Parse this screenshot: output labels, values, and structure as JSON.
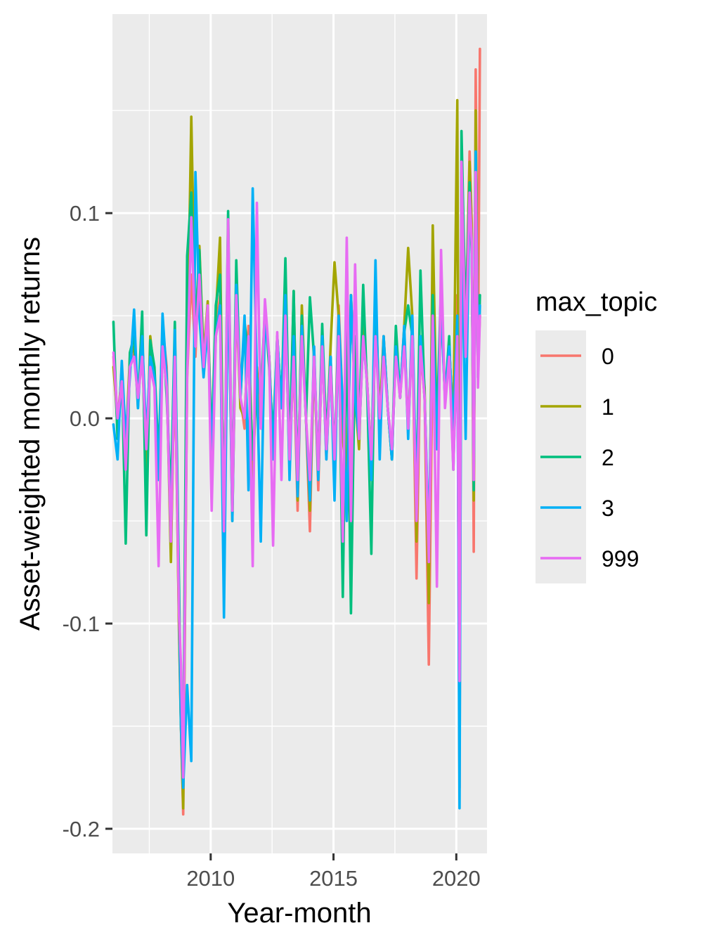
{
  "chart_data": {
    "type": "line",
    "title": "",
    "xlabel": "Year-month",
    "ylabel": "Asset-weighted monthly returns",
    "xlim": [
      2006.0,
      2021.25
    ],
    "ylim": [
      -0.212,
      0.197
    ],
    "x_ticks": [
      2010,
      2015,
      2020
    ],
    "x_tick_labels": [
      "2010",
      "2015",
      "2020"
    ],
    "y_ticks": [
      -0.2,
      -0.1,
      0.0,
      0.1
    ],
    "y_tick_labels": [
      "-0.2",
      "-0.1",
      "0.0",
      "0.1"
    ],
    "grid": true,
    "legend": {
      "title": "max_topic",
      "position": "right"
    },
    "series": [
      {
        "name": "0",
        "color": "#F8766D",
        "x": [
          2006.04,
          2006.21,
          2006.38,
          2006.54,
          2006.71,
          2006.88,
          2007.04,
          2007.21,
          2007.38,
          2007.54,
          2007.71,
          2007.88,
          2008.04,
          2008.21,
          2008.38,
          2008.54,
          2008.71,
          2008.79,
          2008.88,
          2009.04,
          2009.21,
          2009.38,
          2009.54,
          2009.71,
          2009.88,
          2010.04,
          2010.21,
          2010.38,
          2010.54,
          2010.71,
          2010.88,
          2011.04,
          2011.21,
          2011.38,
          2011.54,
          2011.71,
          2011.88,
          2012.04,
          2012.21,
          2012.38,
          2012.54,
          2012.71,
          2012.88,
          2013.04,
          2013.21,
          2013.38,
          2013.54,
          2013.71,
          2013.88,
          2014.04,
          2014.21,
          2014.38,
          2014.54,
          2014.71,
          2014.88,
          2015.04,
          2015.21,
          2015.38,
          2015.54,
          2015.71,
          2015.88,
          2016.04,
          2016.21,
          2016.38,
          2016.54,
          2016.71,
          2016.88,
          2017.04,
          2017.21,
          2017.38,
          2017.54,
          2017.71,
          2017.88,
          2018.04,
          2018.21,
          2018.38,
          2018.54,
          2018.71,
          2018.88,
          2019.04,
          2019.21,
          2019.38,
          2019.54,
          2019.71,
          2019.88,
          2020.04,
          2020.13,
          2020.21,
          2020.38,
          2020.54,
          2020.63,
          2020.71,
          2020.79,
          2020.88,
          2020.96
        ],
        "values": [
          0.03,
          -0.005,
          0.015,
          -0.02,
          0.025,
          0.035,
          0.01,
          0.04,
          -0.015,
          0.03,
          0.02,
          -0.03,
          0.045,
          0.025,
          -0.06,
          0.03,
          -0.1,
          -0.15,
          -0.193,
          0.02,
          0.07,
          0.03,
          0.082,
          0.025,
          0.05,
          -0.01,
          0.04,
          0.06,
          -0.05,
          0.07,
          -0.04,
          0.065,
          0.01,
          -0.005,
          0.045,
          -0.025,
          0.02,
          -0.003,
          0.05,
          0.03,
          -0.015,
          0.04,
          0.005,
          0.06,
          -0.02,
          0.03,
          -0.045,
          0.045,
          0.0,
          -0.055,
          0.035,
          -0.035,
          0.04,
          -0.02,
          0.03,
          -0.025,
          0.055,
          0.005,
          -0.04,
          0.06,
          0.01,
          -0.01,
          0.045,
          0.015,
          -0.03,
          0.055,
          -0.005,
          0.04,
          0.005,
          -0.02,
          0.035,
          0.01,
          0.042,
          -0.005,
          0.045,
          -0.078,
          0.035,
          0.01,
          -0.12,
          0.04,
          -0.015,
          0.055,
          0.01,
          0.035,
          -0.005,
          0.06,
          -0.18,
          0.11,
          0.04,
          0.13,
          0.095,
          -0.065,
          0.17,
          0.02,
          0.18
        ]
      },
      {
        "name": "1",
        "color": "#A3A500",
        "x": [
          2006.04,
          2006.21,
          2006.38,
          2006.54,
          2006.71,
          2006.88,
          2007.04,
          2007.21,
          2007.38,
          2007.54,
          2007.71,
          2007.88,
          2008.04,
          2008.21,
          2008.38,
          2008.54,
          2008.71,
          2008.79,
          2008.88,
          2009.04,
          2009.21,
          2009.38,
          2009.54,
          2009.71,
          2009.88,
          2010.04,
          2010.21,
          2010.38,
          2010.54,
          2010.71,
          2010.88,
          2011.04,
          2011.21,
          2011.38,
          2011.54,
          2011.71,
          2011.88,
          2012.04,
          2012.21,
          2012.38,
          2012.54,
          2012.71,
          2012.88,
          2013.04,
          2013.21,
          2013.38,
          2013.54,
          2013.71,
          2013.88,
          2014.04,
          2014.21,
          2014.38,
          2014.54,
          2014.71,
          2014.88,
          2015.04,
          2015.21,
          2015.38,
          2015.54,
          2015.71,
          2015.88,
          2016.04,
          2016.21,
          2016.38,
          2016.54,
          2016.71,
          2016.88,
          2017.04,
          2017.21,
          2017.38,
          2017.54,
          2017.71,
          2017.88,
          2018.04,
          2018.21,
          2018.38,
          2018.54,
          2018.71,
          2018.88,
          2019.04,
          2019.21,
          2019.38,
          2019.54,
          2019.71,
          2019.88,
          2020.04,
          2020.13,
          2020.21,
          2020.38,
          2020.54,
          2020.63,
          2020.71,
          2020.79,
          2020.88,
          2020.96
        ],
        "values": [
          0.025,
          0.0,
          0.02,
          -0.015,
          0.03,
          0.035,
          0.012,
          0.035,
          -0.03,
          0.04,
          0.02,
          -0.025,
          0.04,
          0.02,
          -0.07,
          0.035,
          -0.103,
          -0.15,
          -0.19,
          0.025,
          0.147,
          0.04,
          0.084,
          0.03,
          0.057,
          -0.02,
          0.05,
          0.088,
          -0.06,
          0.084,
          -0.05,
          0.06,
          0.005,
          0.0,
          0.04,
          -0.03,
          0.025,
          0.0,
          0.05,
          0.03,
          -0.015,
          0.035,
          0.01,
          0.055,
          -0.025,
          0.062,
          -0.04,
          0.055,
          0.0,
          -0.045,
          0.03,
          -0.03,
          0.04,
          -0.015,
          0.035,
          0.076,
          0.05,
          -0.01,
          -0.03,
          0.06,
          0.01,
          -0.015,
          0.05,
          0.015,
          -0.02,
          0.06,
          0.0,
          0.04,
          0.005,
          -0.02,
          0.04,
          0.01,
          0.045,
          0.083,
          0.05,
          -0.06,
          0.04,
          0.015,
          -0.09,
          0.094,
          -0.01,
          0.06,
          0.01,
          0.035,
          -0.005,
          0.155,
          -0.13,
          0.12,
          0.04,
          0.125,
          0.09,
          -0.04,
          0.15,
          0.025,
          0.05
        ]
      },
      {
        "name": "2",
        "color": "#00BF7D",
        "x": [
          2006.04,
          2006.21,
          2006.38,
          2006.54,
          2006.71,
          2006.88,
          2007.04,
          2007.21,
          2007.38,
          2007.54,
          2007.71,
          2007.88,
          2008.04,
          2008.21,
          2008.38,
          2008.54,
          2008.71,
          2008.79,
          2008.88,
          2009.04,
          2009.21,
          2009.38,
          2009.54,
          2009.71,
          2009.88,
          2010.04,
          2010.21,
          2010.38,
          2010.54,
          2010.71,
          2010.88,
          2011.04,
          2011.21,
          2011.38,
          2011.54,
          2011.71,
          2011.88,
          2012.04,
          2012.21,
          2012.38,
          2012.54,
          2012.71,
          2012.88,
          2013.04,
          2013.21,
          2013.38,
          2013.54,
          2013.71,
          2013.88,
          2014.04,
          2014.21,
          2014.38,
          2014.54,
          2014.71,
          2014.88,
          2015.04,
          2015.21,
          2015.38,
          2015.54,
          2015.71,
          2015.88,
          2016.04,
          2016.21,
          2016.38,
          2016.54,
          2016.71,
          2016.88,
          2017.04,
          2017.21,
          2017.38,
          2017.54,
          2017.71,
          2017.88,
          2018.04,
          2018.21,
          2018.38,
          2018.54,
          2018.71,
          2018.88,
          2019.04,
          2019.21,
          2019.38,
          2019.54,
          2019.71,
          2019.88,
          2020.04,
          2020.13,
          2020.21,
          2020.38,
          2020.54,
          2020.63,
          2020.71,
          2020.79,
          2020.88,
          2020.96
        ],
        "values": [
          0.047,
          -0.01,
          0.025,
          -0.061,
          0.032,
          0.04,
          0.005,
          0.052,
          -0.057,
          0.038,
          0.025,
          -0.02,
          0.045,
          0.01,
          -0.04,
          0.047,
          -0.08,
          -0.14,
          -0.17,
          0.079,
          0.11,
          0.04,
          0.082,
          0.025,
          0.05,
          -0.015,
          0.055,
          0.07,
          -0.055,
          0.101,
          -0.045,
          0.077,
          0.01,
          0.047,
          0.03,
          -0.02,
          0.02,
          0.01,
          0.053,
          0.025,
          -0.01,
          0.04,
          0.005,
          0.078,
          -0.02,
          0.062,
          -0.035,
          0.05,
          0.0,
          0.059,
          0.03,
          -0.025,
          0.046,
          -0.01,
          0.03,
          -0.02,
          0.048,
          -0.087,
          0.05,
          -0.095,
          0.04,
          -0.01,
          0.065,
          0.01,
          -0.066,
          0.062,
          -0.005,
          0.035,
          0.005,
          -0.02,
          0.045,
          0.01,
          0.042,
          0.055,
          0.04,
          -0.04,
          0.072,
          0.01,
          -0.065,
          0.06,
          -0.005,
          0.065,
          0.01,
          0.04,
          -0.025,
          0.047,
          -0.15,
          0.14,
          0.045,
          0.115,
          0.08,
          -0.035,
          0.13,
          0.02,
          0.06
        ]
      },
      {
        "name": "3",
        "color": "#00B0F6",
        "x": [
          2006.04,
          2006.21,
          2006.38,
          2006.54,
          2006.71,
          2006.88,
          2007.04,
          2007.21,
          2007.38,
          2007.54,
          2007.71,
          2007.88,
          2008.04,
          2008.21,
          2008.38,
          2008.54,
          2008.71,
          2008.79,
          2008.88,
          2009.04,
          2009.21,
          2009.38,
          2009.54,
          2009.71,
          2009.88,
          2010.04,
          2010.21,
          2010.38,
          2010.54,
          2010.71,
          2010.88,
          2011.04,
          2011.21,
          2011.38,
          2011.54,
          2011.71,
          2011.88,
          2012.04,
          2012.21,
          2012.38,
          2012.54,
          2012.71,
          2012.88,
          2013.04,
          2013.21,
          2013.38,
          2013.54,
          2013.71,
          2013.88,
          2014.04,
          2014.21,
          2014.38,
          2014.54,
          2014.71,
          2014.88,
          2015.04,
          2015.21,
          2015.38,
          2015.54,
          2015.71,
          2015.88,
          2016.04,
          2016.21,
          2016.38,
          2016.54,
          2016.71,
          2016.88,
          2017.04,
          2017.21,
          2017.38,
          2017.54,
          2017.71,
          2017.88,
          2018.04,
          2018.21,
          2018.38,
          2018.54,
          2018.71,
          2018.88,
          2019.04,
          2019.21,
          2019.38,
          2019.54,
          2019.71,
          2019.88,
          2020.04,
          2020.13,
          2020.21,
          2020.38,
          2020.54,
          2020.63,
          2020.71,
          2020.79,
          2020.88,
          2020.96
        ],
        "values": [
          -0.003,
          -0.02,
          0.028,
          -0.01,
          0.02,
          0.053,
          0.005,
          0.04,
          -0.01,
          0.03,
          0.02,
          -0.03,
          0.051,
          0.02,
          -0.06,
          0.043,
          -0.09,
          -0.15,
          -0.18,
          -0.13,
          -0.167,
          0.12,
          0.05,
          0.02,
          0.045,
          -0.02,
          0.04,
          0.055,
          -0.097,
          0.08,
          -0.05,
          0.065,
          0.01,
          0.05,
          -0.035,
          0.112,
          0.02,
          -0.06,
          0.05,
          0.03,
          -0.02,
          0.04,
          0.005,
          0.06,
          -0.03,
          0.04,
          -0.038,
          0.045,
          0.0,
          -0.04,
          0.035,
          -0.03,
          0.04,
          -0.02,
          0.03,
          -0.04,
          0.05,
          0.005,
          -0.05,
          0.06,
          0.01,
          -0.01,
          0.04,
          0.015,
          -0.03,
          0.077,
          -0.02,
          0.04,
          0.005,
          -0.02,
          0.035,
          0.01,
          0.045,
          -0.01,
          0.05,
          -0.04,
          0.04,
          0.01,
          -0.06,
          0.05,
          -0.015,
          0.055,
          0.01,
          0.035,
          -0.005,
          0.05,
          -0.19,
          0.1,
          -0.01,
          0.11,
          0.085,
          -0.03,
          0.13,
          0.02,
          0.055
        ]
      },
      {
        "name": "999",
        "color": "#E76BF3",
        "x": [
          2006.04,
          2006.21,
          2006.38,
          2006.54,
          2006.71,
          2006.88,
          2007.04,
          2007.21,
          2007.38,
          2007.54,
          2007.71,
          2007.88,
          2008.04,
          2008.21,
          2008.38,
          2008.54,
          2008.71,
          2008.79,
          2008.88,
          2009.04,
          2009.21,
          2009.38,
          2009.54,
          2009.71,
          2009.88,
          2010.04,
          2010.21,
          2010.38,
          2010.54,
          2010.71,
          2010.88,
          2011.04,
          2011.21,
          2011.38,
          2011.54,
          2011.71,
          2011.88,
          2012.04,
          2012.21,
          2012.38,
          2012.54,
          2012.71,
          2012.88,
          2013.04,
          2013.21,
          2013.38,
          2013.54,
          2013.71,
          2013.88,
          2014.04,
          2014.21,
          2014.38,
          2014.54,
          2014.71,
          2014.88,
          2015.04,
          2015.21,
          2015.38,
          2015.54,
          2015.71,
          2015.88,
          2016.04,
          2016.21,
          2016.38,
          2016.54,
          2016.71,
          2016.88,
          2017.04,
          2017.21,
          2017.38,
          2017.54,
          2017.71,
          2017.88,
          2018.04,
          2018.21,
          2018.38,
          2018.54,
          2018.71,
          2018.88,
          2019.04,
          2019.21,
          2019.38,
          2019.54,
          2019.71,
          2019.88,
          2020.04,
          2020.13,
          2020.21,
          2020.38,
          2020.54,
          2020.63,
          2020.71,
          2020.79,
          2020.88,
          2020.96
        ],
        "values": [
          0.032,
          0.0,
          0.018,
          -0.025,
          0.025,
          0.03,
          0.01,
          0.03,
          -0.015,
          0.025,
          0.015,
          -0.072,
          0.035,
          0.015,
          -0.06,
          0.03,
          -0.095,
          -0.12,
          -0.175,
          0.02,
          0.098,
          0.035,
          0.07,
          0.025,
          0.055,
          -0.045,
          0.04,
          0.05,
          -0.055,
          0.097,
          -0.045,
          0.06,
          0.01,
          0.0,
          0.04,
          -0.072,
          0.105,
          -0.005,
          0.058,
          0.03,
          -0.062,
          0.042,
          -0.03,
          0.05,
          -0.02,
          0.03,
          -0.03,
          0.04,
          0.0,
          -0.03,
          0.03,
          -0.025,
          0.035,
          -0.015,
          0.025,
          -0.02,
          0.04,
          -0.06,
          0.088,
          -0.05,
          0.075,
          -0.01,
          0.04,
          0.015,
          -0.02,
          0.04,
          0.0,
          0.03,
          0.005,
          -0.015,
          0.03,
          0.01,
          0.035,
          -0.005,
          0.04,
          -0.05,
          0.035,
          0.01,
          -0.07,
          0.05,
          -0.082,
          0.082,
          0.005,
          0.03,
          -0.025,
          0.04,
          -0.128,
          0.125,
          0.03,
          0.11,
          0.085,
          -0.03,
          0.12,
          0.015,
          0.05
        ]
      }
    ]
  }
}
